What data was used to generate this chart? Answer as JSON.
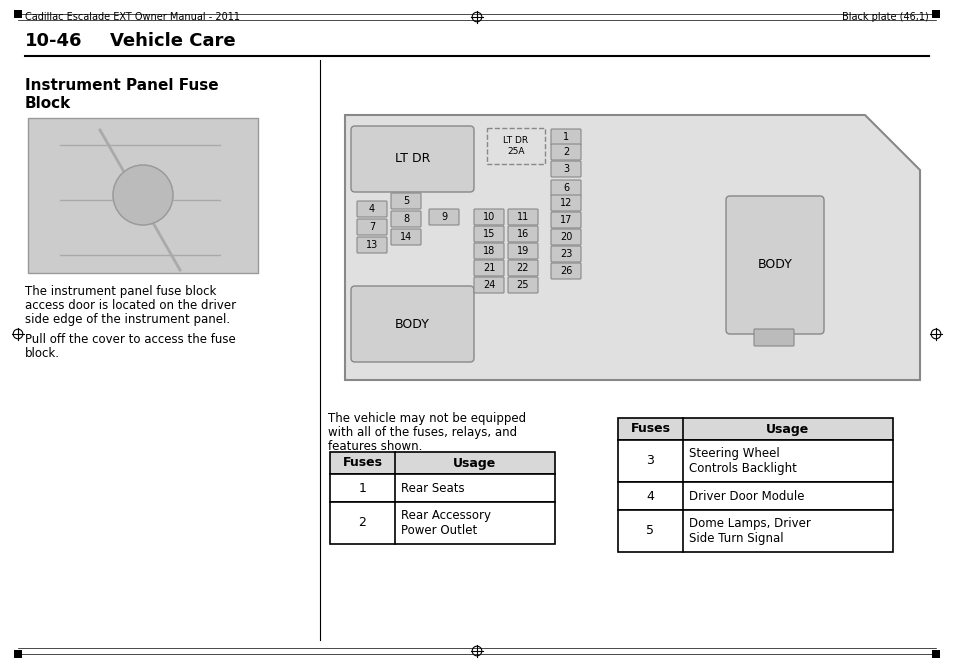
{
  "page_title_left": "Cadillac Escalade EXT Owner Manual - 2011",
  "page_title_right": "Black plate (46,1)",
  "section_number": "10-46",
  "section_title": "Vehicle Care",
  "block_title_line1": "Instrument Panel Fuse",
  "block_title_line2": "Block",
  "body_text1_lines": [
    "The instrument panel fuse block",
    "access door is located on the driver",
    "side edge of the instrument panel."
  ],
  "body_text2_lines": [
    "Pull off the cover to access the fuse",
    "block."
  ],
  "note_text_lines": [
    "The vehicle may not be equipped",
    "with all of the fuses, relays, and",
    "features shown."
  ],
  "table1_headers": [
    "Fuses",
    "Usage"
  ],
  "table1_rows": [
    [
      "1",
      "Rear Seats"
    ],
    [
      "2",
      "Rear Accessory\nPower Outlet"
    ]
  ],
  "table2_headers": [
    "Fuses",
    "Usage"
  ],
  "table2_rows": [
    [
      "3",
      "Steering Wheel\nControls Backlight"
    ],
    [
      "4",
      "Driver Door Module"
    ],
    [
      "5",
      "Dome Lamps, Driver\nSide Turn Signal"
    ]
  ],
  "bg_color": "#ffffff",
  "panel_bg": "#e0e0e0",
  "relay_bg": "#d0d0d0",
  "fuse_bg": "#c8c8c8",
  "table_header_bg": "#d8d8d8"
}
